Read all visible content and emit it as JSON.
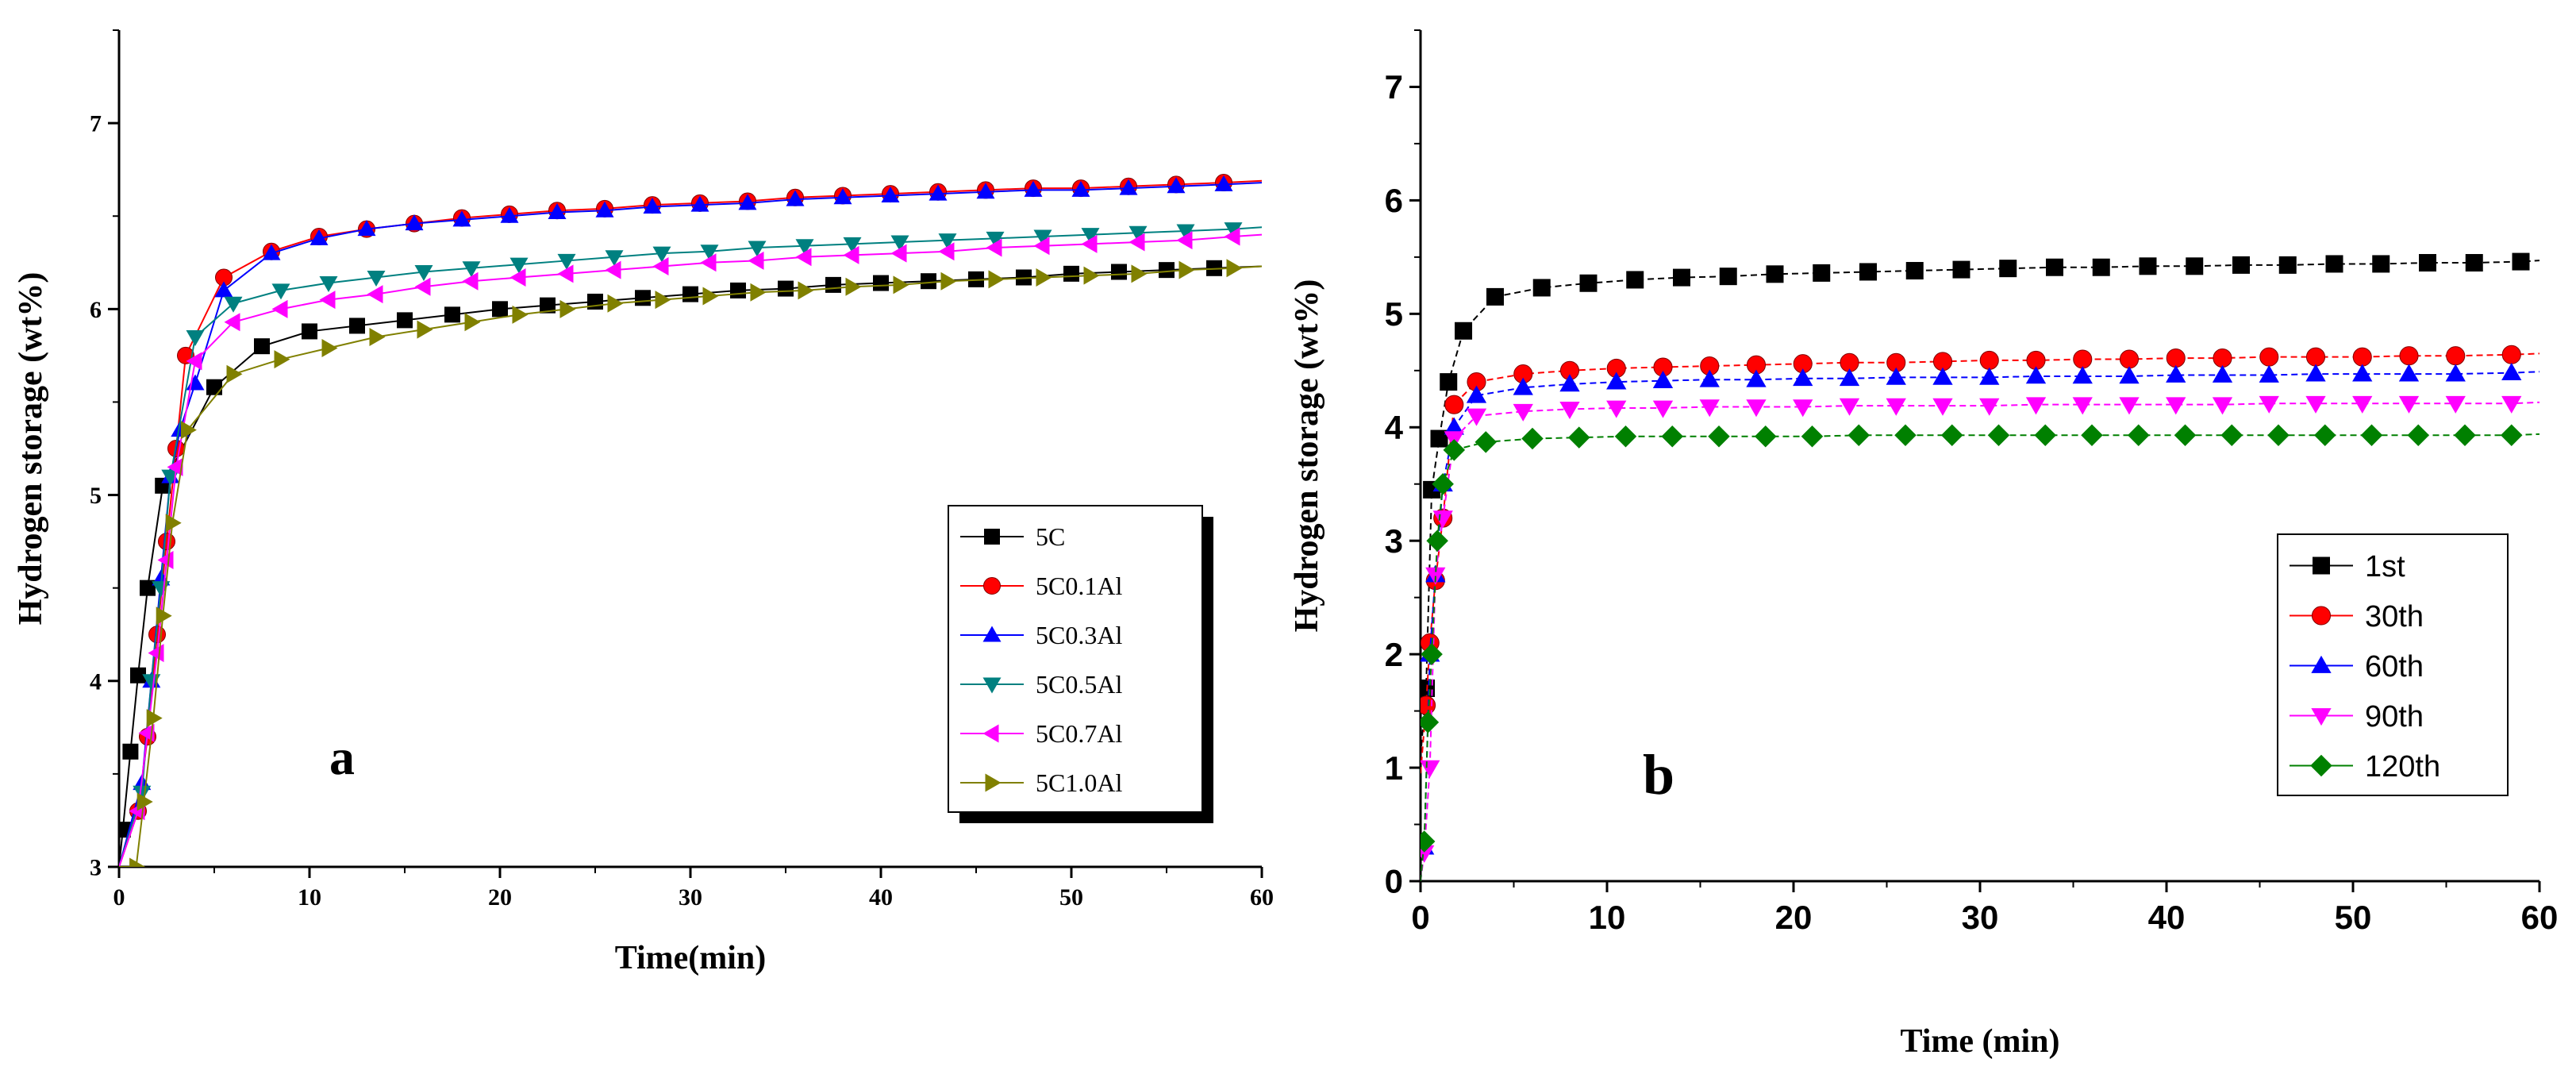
{
  "chart_data": [
    {
      "type": "scatter",
      "panel_label": "a",
      "xlabel": "Time(min)",
      "ylabel": "Hydrogen storage (wt%)",
      "xlim": [
        0,
        60
      ],
      "ylim": [
        3,
        7.5
      ],
      "xticks": [
        0,
        10,
        20,
        30,
        40,
        50,
        60
      ],
      "yticks": [
        3,
        4,
        5,
        6,
        7
      ],
      "legend_position": "bottom-right",
      "series": [
        {
          "name": "5C",
          "color": "#000000",
          "marker": "square",
          "x": [
            0.2,
            0.6,
            1.0,
            1.5,
            2.3,
            5.0,
            7.5,
            10,
            12.5,
            15,
            17.5,
            20,
            22.5,
            25,
            27.5,
            30,
            32.5,
            35,
            37.5,
            40,
            42.5,
            45,
            47.5,
            50,
            52.5,
            55,
            57.5
          ],
          "y": [
            3.2,
            3.62,
            4.03,
            4.5,
            5.05,
            5.58,
            5.8,
            5.88,
            5.91,
            5.94,
            5.97,
            6.0,
            6.02,
            6.04,
            6.06,
            6.08,
            6.1,
            6.11,
            6.13,
            6.14,
            6.15,
            6.16,
            6.17,
            6.19,
            6.2,
            6.21,
            6.22
          ]
        },
        {
          "name": "5C0.1Al",
          "color": "#ff0000",
          "marker": "circle",
          "x": [
            1.0,
            1.5,
            2.0,
            2.5,
            3.0,
            3.5,
            5.5,
            8,
            10.5,
            13,
            15.5,
            18,
            20.5,
            23,
            25.5,
            28,
            30.5,
            33,
            35.5,
            38,
            40.5,
            43,
            45.5,
            48,
            50.5,
            53,
            55.5,
            58
          ],
          "y": [
            3.3,
            3.7,
            4.25,
            4.75,
            5.25,
            5.75,
            6.17,
            6.31,
            6.39,
            6.43,
            6.46,
            6.49,
            6.51,
            6.53,
            6.54,
            6.56,
            6.57,
            6.58,
            6.6,
            6.61,
            6.62,
            6.63,
            6.64,
            6.65,
            6.65,
            6.66,
            6.67,
            6.68
          ]
        },
        {
          "name": "5C0.3Al",
          "color": "#0000ff",
          "marker": "triangle-up",
          "x": [
            1.2,
            1.7,
            2.2,
            2.7,
            3.2,
            4.0,
            5.5,
            8,
            10.5,
            13,
            15.5,
            18,
            20.5,
            23,
            25.5,
            28,
            30.5,
            33,
            35.5,
            38,
            40.5,
            43,
            45.5,
            48,
            50.5,
            53,
            55.5,
            58
          ],
          "y": [
            3.45,
            4.0,
            4.55,
            5.1,
            5.35,
            5.6,
            6.1,
            6.3,
            6.38,
            6.43,
            6.46,
            6.48,
            6.5,
            6.52,
            6.53,
            6.55,
            6.56,
            6.57,
            6.59,
            6.6,
            6.61,
            6.62,
            6.63,
            6.64,
            6.64,
            6.65,
            6.66,
            6.67
          ]
        },
        {
          "name": "5C0.5Al",
          "color": "#008080",
          "marker": "triangle-down",
          "x": [
            1.2,
            1.7,
            2.2,
            2.7,
            4.0,
            6,
            8.5,
            11,
            13.5,
            16,
            18.5,
            21,
            23.5,
            26,
            28.5,
            31,
            33.5,
            36,
            38.5,
            41,
            43.5,
            46,
            48.5,
            51,
            53.5,
            56,
            58.5
          ],
          "y": [
            3.4,
            4.0,
            4.5,
            5.1,
            5.85,
            6.03,
            6.1,
            6.14,
            6.17,
            6.2,
            6.22,
            6.24,
            6.26,
            6.28,
            6.3,
            6.31,
            6.33,
            6.34,
            6.35,
            6.36,
            6.37,
            6.38,
            6.39,
            6.4,
            6.41,
            6.42,
            6.43
          ]
        },
        {
          "name": "5C0.7Al",
          "color": "#ff00ff",
          "marker": "triangle-left",
          "x": [
            1.0,
            1.5,
            2.0,
            2.5,
            3.0,
            4.0,
            6,
            8.5,
            11,
            13.5,
            16,
            18.5,
            21,
            23.5,
            26,
            28.5,
            31,
            33.5,
            36,
            38.5,
            41,
            43.5,
            46,
            48.5,
            51,
            53.5,
            56,
            58.5
          ],
          "y": [
            3.3,
            3.72,
            4.15,
            4.65,
            5.15,
            5.72,
            5.93,
            6.0,
            6.05,
            6.08,
            6.12,
            6.15,
            6.17,
            6.19,
            6.21,
            6.23,
            6.25,
            6.26,
            6.28,
            6.29,
            6.3,
            6.31,
            6.33,
            6.34,
            6.35,
            6.36,
            6.37,
            6.39
          ]
        },
        {
          "name": "5C1.0Al",
          "color": "#808000",
          "marker": "triangle-right",
          "x": [
            0.9,
            1.3,
            1.8,
            2.3,
            2.8,
            3.6,
            6,
            8.5,
            11,
            13.5,
            16,
            18.5,
            21,
            23.5,
            26,
            28.5,
            31,
            33.5,
            36,
            38.5,
            41,
            43.5,
            46,
            48.5,
            51,
            53.5,
            56,
            58.5
          ],
          "y": [
            3.0,
            3.35,
            3.8,
            4.35,
            4.85,
            5.35,
            5.65,
            5.73,
            5.79,
            5.85,
            5.89,
            5.93,
            5.97,
            6.0,
            6.03,
            6.05,
            6.07,
            6.09,
            6.1,
            6.12,
            6.13,
            6.15,
            6.16,
            6.17,
            6.18,
            6.19,
            6.21,
            6.22
          ]
        }
      ]
    },
    {
      "type": "scatter",
      "panel_label": "b",
      "xlabel": "Time (min)",
      "ylabel": "Hydrogen storage (wt%)",
      "xlim": [
        0,
        60
      ],
      "ylim": [
        0,
        7.5
      ],
      "xticks": [
        0,
        10,
        20,
        30,
        40,
        50,
        60
      ],
      "yticks": [
        0,
        1,
        2,
        3,
        4,
        5,
        6,
        7
      ],
      "legend_position": "bottom-right",
      "series": [
        {
          "name": "1st",
          "color": "#000000",
          "marker": "square",
          "x": [
            0.3,
            0.6,
            1.0,
            1.5,
            2.3,
            4,
            6.5,
            9,
            11.5,
            14,
            16.5,
            19,
            21.5,
            24,
            26.5,
            29,
            31.5,
            34,
            36.5,
            39,
            41.5,
            44,
            46.5,
            49,
            51.5,
            54,
            56.5,
            59
          ],
          "y": [
            1.7,
            3.45,
            3.9,
            4.4,
            4.85,
            5.15,
            5.23,
            5.27,
            5.3,
            5.32,
            5.33,
            5.35,
            5.36,
            5.37,
            5.38,
            5.39,
            5.4,
            5.41,
            5.41,
            5.42,
            5.42,
            5.43,
            5.43,
            5.44,
            5.44,
            5.45,
            5.45,
            5.46
          ]
        },
        {
          "name": "30th",
          "color": "#ff0000",
          "marker": "circle",
          "x": [
            0.3,
            0.5,
            0.8,
            1.2,
            1.8,
            3,
            5.5,
            8,
            10.5,
            13,
            15.5,
            18,
            20.5,
            23,
            25.5,
            28,
            30.5,
            33,
            35.5,
            38,
            40.5,
            43,
            45.5,
            48,
            50.5,
            53,
            55.5,
            58.5
          ],
          "y": [
            1.55,
            2.1,
            2.65,
            3.2,
            4.2,
            4.4,
            4.47,
            4.5,
            4.52,
            4.53,
            4.54,
            4.55,
            4.56,
            4.57,
            4.57,
            4.58,
            4.59,
            4.59,
            4.6,
            4.6,
            4.61,
            4.61,
            4.62,
            4.62,
            4.62,
            4.63,
            4.63,
            4.64
          ]
        },
        {
          "name": "60th",
          "color": "#0000ff",
          "marker": "triangle-up",
          "x": [
            0.2,
            0.5,
            0.8,
            1.2,
            1.8,
            3,
            5.5,
            8,
            10.5,
            13,
            15.5,
            18,
            20.5,
            23,
            25.5,
            28,
            30.5,
            33,
            35.5,
            38,
            40.5,
            43,
            45.5,
            48,
            50.5,
            53,
            55.5,
            58.5
          ],
          "y": [
            0.3,
            2.0,
            2.7,
            3.5,
            4.0,
            4.28,
            4.35,
            4.38,
            4.4,
            4.41,
            4.42,
            4.42,
            4.43,
            4.43,
            4.44,
            4.44,
            4.44,
            4.45,
            4.45,
            4.45,
            4.46,
            4.46,
            4.46,
            4.47,
            4.47,
            4.47,
            4.47,
            4.48
          ]
        },
        {
          "name": "90th",
          "color": "#ff00ff",
          "marker": "triangle-down",
          "x": [
            0.2,
            0.5,
            0.8,
            1.2,
            1.8,
            3,
            5.5,
            8,
            10.5,
            13,
            15.5,
            18,
            20.5,
            23,
            25.5,
            28,
            30.5,
            33,
            35.5,
            38,
            40.5,
            43,
            45.5,
            48,
            50.5,
            53,
            55.5,
            58.5
          ],
          "y": [
            0.25,
            1.0,
            2.7,
            3.2,
            3.9,
            4.1,
            4.14,
            4.16,
            4.17,
            4.17,
            4.18,
            4.18,
            4.18,
            4.19,
            4.19,
            4.19,
            4.19,
            4.2,
            4.2,
            4.2,
            4.2,
            4.2,
            4.21,
            4.21,
            4.21,
            4.21,
            4.21,
            4.21
          ]
        },
        {
          "name": "120th",
          "color": "#008000",
          "marker": "diamond",
          "x": [
            0.2,
            0.4,
            0.6,
            0.9,
            1.2,
            1.8,
            3.5,
            6,
            8.5,
            11,
            13.5,
            16,
            18.5,
            21,
            23.5,
            26,
            28.5,
            31,
            33.5,
            36,
            38.5,
            41,
            43.5,
            46,
            48.5,
            51,
            53.5,
            56,
            58.5
          ],
          "y": [
            0.35,
            1.4,
            2.0,
            3.0,
            3.5,
            3.8,
            3.87,
            3.9,
            3.91,
            3.92,
            3.92,
            3.92,
            3.92,
            3.92,
            3.93,
            3.93,
            3.93,
            3.93,
            3.93,
            3.93,
            3.93,
            3.93,
            3.93,
            3.93,
            3.93,
            3.93,
            3.93,
            3.93,
            3.93
          ]
        }
      ]
    }
  ]
}
